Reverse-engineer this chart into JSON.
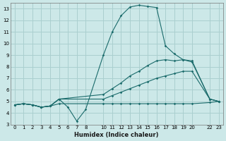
{
  "xlabel": "Humidex (Indice chaleur)",
  "bg_color": "#cce8e8",
  "grid_color": "#aacfcf",
  "line_color": "#1a6b6b",
  "ylim": [
    3,
    13.5
  ],
  "yticks": [
    3,
    4,
    5,
    6,
    7,
    8,
    9,
    10,
    11,
    12,
    13
  ],
  "xticks": [
    0,
    1,
    2,
    3,
    4,
    5,
    6,
    7,
    8,
    10,
    11,
    12,
    13,
    14,
    15,
    16,
    17,
    18,
    19,
    20,
    22,
    23
  ],
  "xlim": [
    -0.5,
    23.5
  ],
  "line_main_x": [
    0,
    1,
    2,
    3,
    4,
    5,
    6,
    7,
    8,
    10,
    11,
    12,
    13,
    14,
    15,
    16,
    17,
    18,
    19,
    20,
    22,
    23
  ],
  "line_main_y": [
    4.7,
    4.8,
    4.7,
    4.5,
    4.6,
    5.2,
    4.5,
    3.3,
    4.3,
    9.0,
    11.0,
    12.4,
    13.15,
    13.3,
    13.2,
    13.1,
    9.8,
    9.1,
    8.6,
    8.5,
    5.2,
    5.0
  ],
  "line_upper_x": [
    0,
    1,
    2,
    3,
    4,
    5,
    10,
    11,
    12,
    13,
    14,
    15,
    16,
    17,
    18,
    19,
    20,
    22,
    23
  ],
  "line_upper_y": [
    4.7,
    4.8,
    4.7,
    4.5,
    4.6,
    5.2,
    5.6,
    6.1,
    6.6,
    7.2,
    7.6,
    8.1,
    8.5,
    8.6,
    8.5,
    8.6,
    8.4,
    5.2,
    5.0
  ],
  "line_mid_x": [
    0,
    1,
    2,
    3,
    4,
    5,
    10,
    11,
    12,
    13,
    14,
    15,
    16,
    17,
    18,
    19,
    20,
    22,
    23
  ],
  "line_mid_y": [
    4.7,
    4.8,
    4.7,
    4.5,
    4.6,
    5.2,
    5.2,
    5.5,
    5.8,
    6.1,
    6.4,
    6.7,
    7.0,
    7.2,
    7.4,
    7.6,
    7.6,
    5.2,
    5.0
  ],
  "line_flat_x": [
    0,
    1,
    2,
    3,
    4,
    5,
    10,
    11,
    12,
    13,
    14,
    15,
    16,
    17,
    18,
    19,
    20,
    22,
    23
  ],
  "line_flat_y": [
    4.7,
    4.8,
    4.7,
    4.5,
    4.6,
    4.8,
    4.8,
    4.8,
    4.8,
    4.8,
    4.8,
    4.8,
    4.8,
    4.8,
    4.8,
    4.8,
    4.8,
    4.9,
    5.0
  ]
}
